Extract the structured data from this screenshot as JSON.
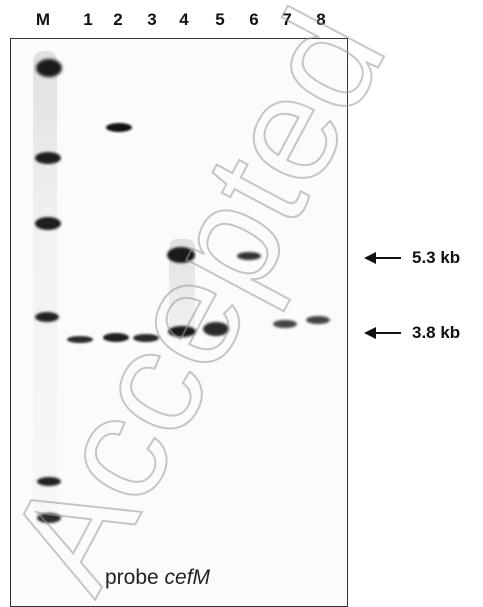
{
  "lanes": [
    "M",
    "1",
    "2",
    "3",
    "4",
    "5",
    "6",
    "7",
    "8"
  ],
  "size_markers": [
    {
      "label": "5.3 kb"
    },
    {
      "label": "3.8 kb"
    }
  ],
  "probe": {
    "prefix": "probe ",
    "gene": "cefM"
  },
  "watermark": "Accepted"
}
